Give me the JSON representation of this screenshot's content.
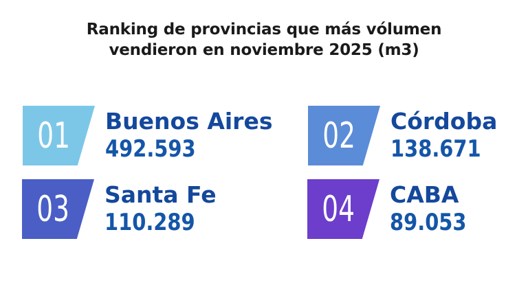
{
  "title": {
    "text": "Ranking de provincias que más vólumen\nvendieron en noviembre 2025 (m3)"
  },
  "ranking": {
    "items": [
      {
        "rank": "01",
        "name": "Buenos Aires",
        "value": "492.593",
        "badge_color": "#7cc7e8"
      },
      {
        "rank": "02",
        "name": "Córdoba",
        "value": "138.671",
        "badge_color": "#5b8cd8"
      },
      {
        "rank": "03",
        "name": "Santa Fe",
        "value": "110.289",
        "badge_color": "#4a5ec6"
      },
      {
        "rank": "04",
        "name": "CABA",
        "value": "89.053",
        "badge_color": "#6c3ecb"
      }
    ]
  },
  "colors": {
    "title_text": "#1a1a1a",
    "name_text": "#14489c",
    "value_text": "#1456a8",
    "rank_text": "#ffffff",
    "background": "#ffffff"
  },
  "chart_data": {
    "type": "table",
    "title": "Ranking de provincias que más vólumen vendieron en noviembre 2025 (m3)",
    "categories": [
      "Buenos Aires",
      "Córdoba",
      "Santa Fe",
      "CABA"
    ],
    "values": [
      492593,
      138671,
      110289,
      89053
    ],
    "value_labels": [
      "492.593",
      "138.671",
      "110.289",
      "89.053"
    ],
    "ranks": [
      "01",
      "02",
      "03",
      "04"
    ],
    "unit": "m3",
    "layout": "2x2-grid, ranked badges left of labels"
  }
}
